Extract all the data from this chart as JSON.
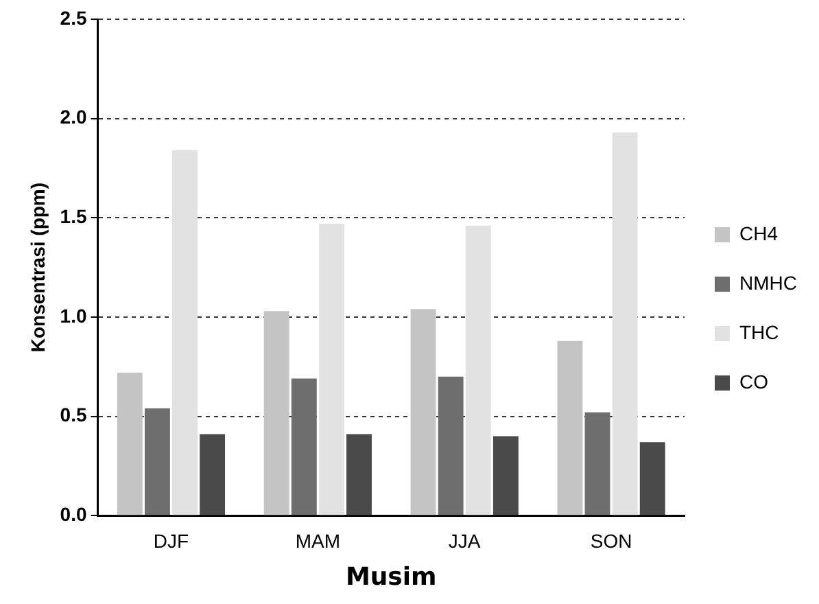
{
  "chart_data": {
    "type": "bar",
    "xlabel": "Musim",
    "ylabel": "Konsentrasi (ppm)",
    "categories": [
      "DJF",
      "MAM",
      "JJA",
      "SON"
    ],
    "series": [
      {
        "name": "CH4",
        "color": "#c4c4c4",
        "values": [
          0.72,
          1.03,
          1.04,
          0.88
        ]
      },
      {
        "name": "NMHC",
        "color": "#6e6e6e",
        "values": [
          0.54,
          0.69,
          0.7,
          0.52
        ]
      },
      {
        "name": "THC",
        "color": "#e2e2e2",
        "values": [
          1.84,
          1.47,
          1.46,
          1.93
        ]
      },
      {
        "name": "CO",
        "color": "#4a4a4a",
        "values": [
          0.41,
          0.41,
          0.4,
          0.37
        ]
      }
    ],
    "ylim": [
      0,
      2.5
    ],
    "yticks": [
      {
        "value": 0,
        "label": "0.0"
      },
      {
        "value": 0.5,
        "label": "0.5"
      },
      {
        "value": 1,
        "label": "1.0"
      },
      {
        "value": 1.5,
        "label": "1.5"
      },
      {
        "value": 2,
        "label": "2.0"
      },
      {
        "value": 2.5,
        "label": "2.5"
      }
    ],
    "grid": "y",
    "legend": "right"
  }
}
